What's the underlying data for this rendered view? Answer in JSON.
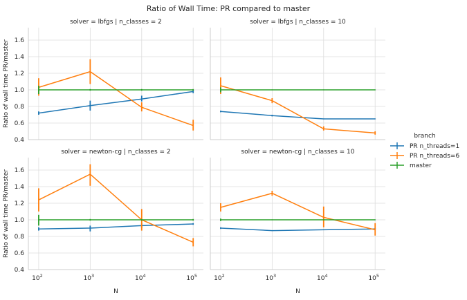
{
  "chart_data": {
    "type": "line",
    "title": "Ratio of Wall Time: PR compared to master",
    "xscale": "log",
    "xlabel": "N",
    "ylabel": "Ratio of wall time PR/master",
    "x": [
      100,
      1000,
      10000,
      100000
    ],
    "xlim": [
      63,
      158000
    ],
    "ylim": [
      0.4,
      1.75
    ],
    "x_tick_labels": [
      {
        "base": "10",
        "exp": "2",
        "value": 100
      },
      {
        "base": "10",
        "exp": "3",
        "value": 1000
      },
      {
        "base": "10",
        "exp": "4",
        "value": 10000
      },
      {
        "base": "10",
        "exp": "5",
        "value": 100000
      }
    ],
    "y_ticks": [
      0.4,
      0.6,
      0.8,
      1.0,
      1.2,
      1.4,
      1.6
    ],
    "y_tick_labels": [
      "0.4",
      "0.6",
      "0.8",
      "1.0",
      "1.2",
      "1.4",
      "1.6"
    ],
    "legend": {
      "title": "branch",
      "placement": "right",
      "entries": [
        {
          "label": "PR n_threads=1",
          "color": "#1f77b4"
        },
        {
          "label": "PR n_threads=6",
          "color": "#ff7f0e"
        },
        {
          "label": "master",
          "color": "#2ca02c"
        }
      ]
    },
    "facets": [
      {
        "title": "solver = lbfgs | n_classes = 2",
        "series": [
          {
            "name": "PR n_threads=1",
            "color": "#1f77b4",
            "values": [
              0.72,
              0.81,
              0.89,
              0.98
            ],
            "err_low": [
              0.7,
              0.75,
              0.86,
              0.96
            ],
            "err_high": [
              0.74,
              0.87,
              0.93,
              1.0
            ]
          },
          {
            "name": "PR n_threads=6",
            "color": "#ff7f0e",
            "values": [
              1.03,
              1.22,
              0.79,
              0.57
            ],
            "err_low": [
              0.93,
              1.07,
              0.74,
              0.51
            ],
            "err_high": [
              1.14,
              1.37,
              0.85,
              0.64
            ]
          },
          {
            "name": "master",
            "color": "#2ca02c",
            "values": [
              1.0,
              1.0,
              1.0,
              1.0
            ],
            "err_low": [
              0.95,
              0.99,
              0.99,
              0.99
            ],
            "err_high": [
              1.05,
              1.01,
              1.01,
              1.01
            ]
          }
        ]
      },
      {
        "title": "solver = lbfgs | n_classes = 10",
        "series": [
          {
            "name": "PR n_threads=1",
            "color": "#1f77b4",
            "values": [
              0.74,
              0.69,
              0.65,
              0.65
            ],
            "err_low": [
              0.73,
              0.68,
              0.645,
              0.645
            ],
            "err_high": [
              0.75,
              0.7,
              0.655,
              0.655
            ]
          },
          {
            "name": "PR n_threads=6",
            "color": "#ff7f0e",
            "values": [
              1.05,
              0.87,
              0.53,
              0.48
            ],
            "err_low": [
              0.95,
              0.84,
              0.51,
              0.46
            ],
            "err_high": [
              1.15,
              0.9,
              0.56,
              0.5
            ]
          },
          {
            "name": "master",
            "color": "#2ca02c",
            "values": [
              1.0,
              1.0,
              1.0,
              1.0
            ],
            "err_low": [
              0.97,
              0.995,
              0.995,
              0.995
            ],
            "err_high": [
              1.03,
              1.005,
              1.005,
              1.005
            ]
          }
        ]
      },
      {
        "title": "solver = newton-cg | n_classes = 2",
        "series": [
          {
            "name": "PR n_threads=1",
            "color": "#1f77b4",
            "values": [
              0.89,
              0.9,
              0.93,
              0.95
            ],
            "err_low": [
              0.87,
              0.86,
              0.9,
              0.94
            ],
            "err_high": [
              0.91,
              0.93,
              0.96,
              0.96
            ]
          },
          {
            "name": "PR n_threads=6",
            "color": "#ff7f0e",
            "values": [
              1.24,
              1.55,
              1.0,
              0.73
            ],
            "err_low": [
              1.1,
              1.41,
              0.87,
              0.68
            ],
            "err_high": [
              1.38,
              1.67,
              1.13,
              0.78
            ]
          },
          {
            "name": "master",
            "color": "#2ca02c",
            "values": [
              1.0,
              1.0,
              1.0,
              1.0
            ],
            "err_low": [
              0.93,
              0.99,
              0.99,
              0.99
            ],
            "err_high": [
              1.06,
              1.01,
              1.01,
              1.01
            ]
          }
        ]
      },
      {
        "title": "solver = newton-cg | n_classes = 10",
        "series": [
          {
            "name": "PR n_threads=1",
            "color": "#1f77b4",
            "values": [
              0.9,
              0.87,
              0.88,
              0.89
            ],
            "err_low": [
              0.89,
              0.865,
              0.875,
              0.88
            ],
            "err_high": [
              0.91,
              0.875,
              0.885,
              0.9
            ]
          },
          {
            "name": "PR n_threads=6",
            "color": "#ff7f0e",
            "values": [
              1.15,
              1.32,
              1.03,
              0.88
            ],
            "err_low": [
              1.1,
              1.29,
              0.91,
              0.81
            ],
            "err_high": [
              1.2,
              1.35,
              1.16,
              0.96
            ]
          },
          {
            "name": "master",
            "color": "#2ca02c",
            "values": [
              1.0,
              1.0,
              1.0,
              1.0
            ],
            "err_low": [
              0.985,
              0.995,
              0.995,
              0.995
            ],
            "err_high": [
              1.015,
              1.005,
              1.005,
              1.005
            ]
          }
        ]
      }
    ]
  }
}
